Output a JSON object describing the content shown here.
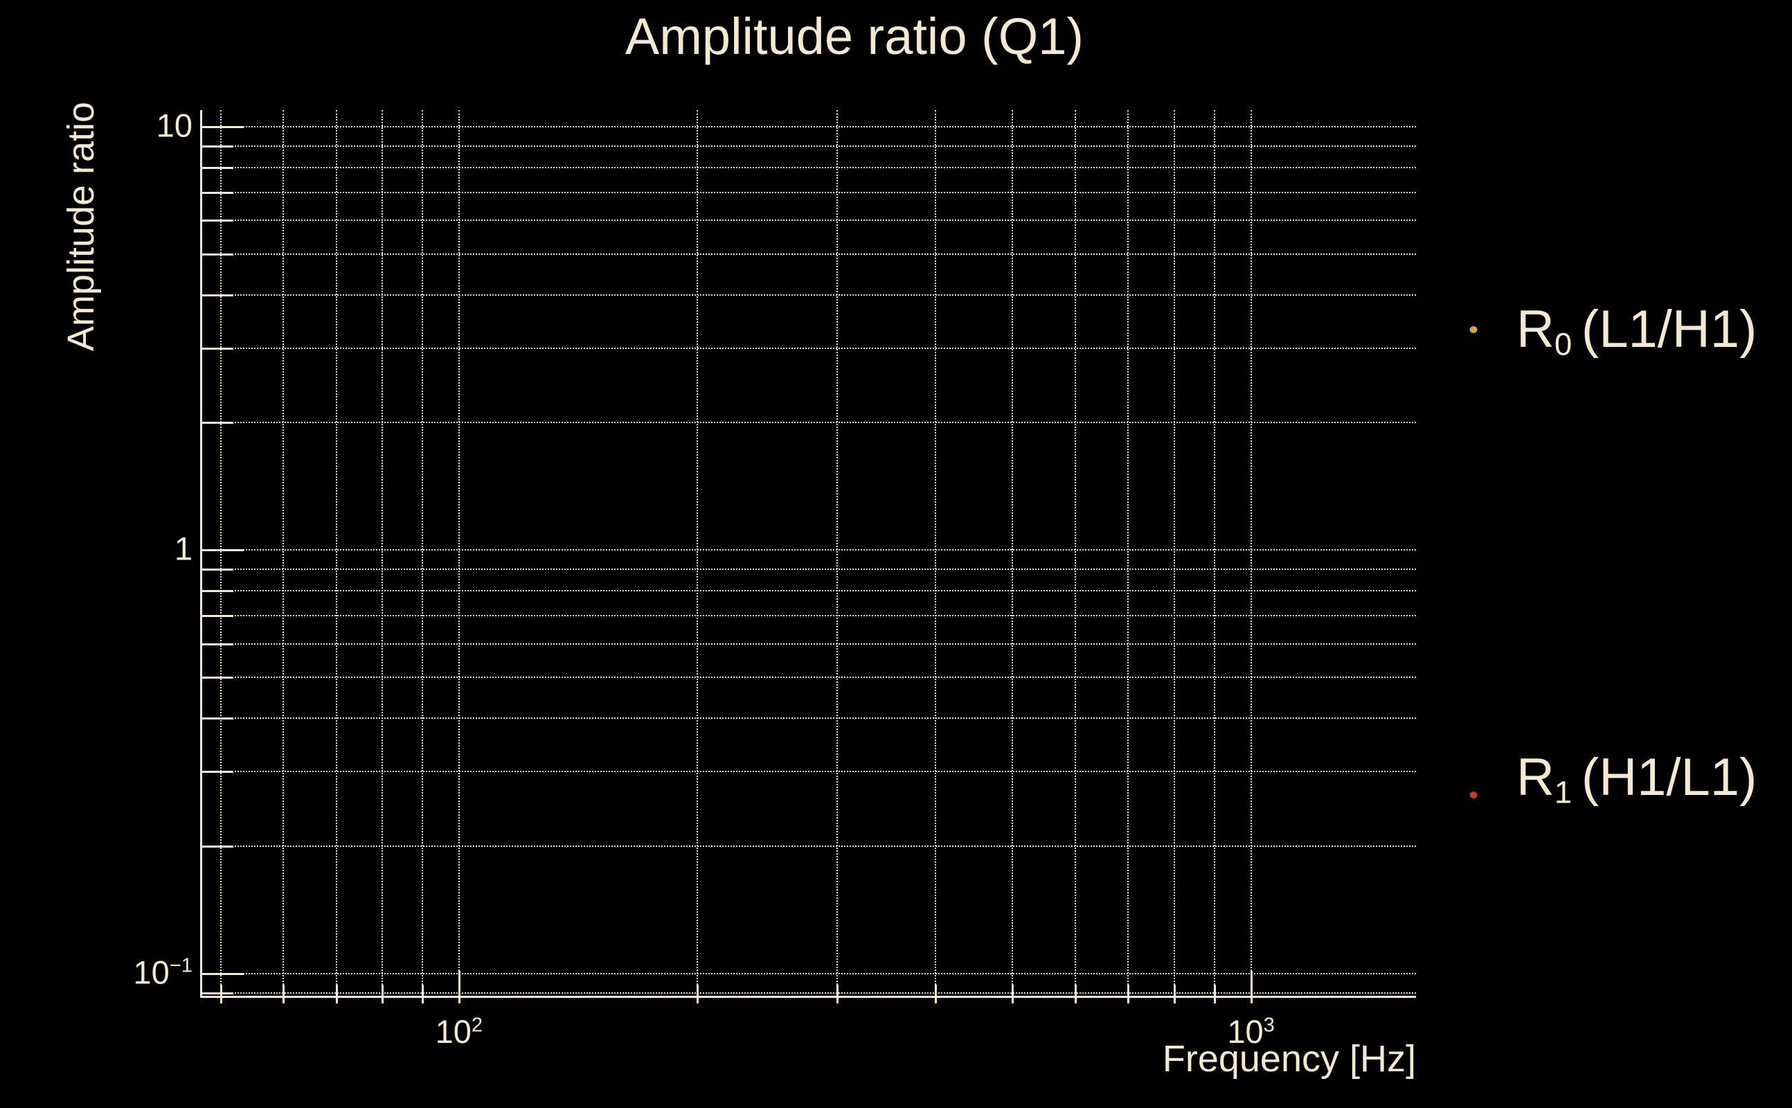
{
  "colors": {
    "background": "#000000",
    "text": "#f2e9cf",
    "spine": "#f2e9cf",
    "grid": "#eae1c6",
    "series0_marker": "#d9a43c",
    "series1_marker": "#c13a2a"
  },
  "chart_data": {
    "type": "scatter",
    "title": "Amplitude ratio (Q1)",
    "xlabel": "Frequency [Hz]",
    "ylabel": "Amplitude ratio",
    "xscale": "log",
    "yscale": "log",
    "xlim": [
      47.4,
      1616
    ],
    "ylim": [
      0.0885,
      10.94
    ],
    "grid": {
      "which": "both",
      "linestyle": "dotted"
    },
    "legend_position": "outside-right",
    "x_ticks": [
      {
        "value": 100,
        "base": "10",
        "sup": "2"
      },
      {
        "value": 1000,
        "base": "10",
        "sup": "3"
      }
    ],
    "y_ticks": [
      {
        "value": 10,
        "base": "10",
        "sup": ""
      },
      {
        "value": 1,
        "base": "1",
        "sup": ""
      },
      {
        "value": 0.1,
        "base": "10",
        "sup": "−1"
      }
    ],
    "series": [
      {
        "name": "R0 (L1/H1)",
        "label_main": "R",
        "label_sub": "0",
        "label_rest": "(L1/H1)",
        "color": "#d9a43c",
        "marker": "point",
        "x": [],
        "y": []
      },
      {
        "name": "R1 (H1/L1)",
        "label_main": "R",
        "label_sub": "1",
        "label_rest": "(H1/L1)",
        "color": "#c13a2a",
        "marker": "point",
        "x": [],
        "y": []
      }
    ]
  }
}
